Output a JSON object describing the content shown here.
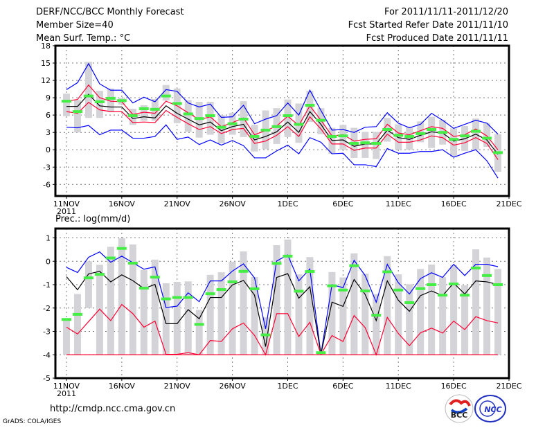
{
  "header": {
    "title": "DERF/NCC/BCC Monthly Forecast",
    "member_size": "Member Size=40",
    "variable_top": "Mean Surf. Temp.: °C",
    "period": "For 2011/11/11-2011/12/20",
    "started": "Fcst Started Refer Date 2011/11/10",
    "produced": "Fcst Produced Date 2011/11/11"
  },
  "footer": {
    "url": "http://cmdp.ncc.cma.gov.cn",
    "credit": "GrADS: COLA/IGES",
    "logo_bcc": "BCC",
    "logo_ncc": "NCC"
  },
  "colors": {
    "max_min": "#0000ff",
    "spread": "#ff0033",
    "mean": "#000000",
    "obs": "#44ee44",
    "box": "#d4d4d8"
  },
  "chart_data": [
    {
      "type": "line",
      "title": "Mean Surf. Temp.: °C",
      "xlabel": "",
      "ylabel": "",
      "x_tick_labels": [
        "11NOV",
        "16NOV",
        "21NOV",
        "26NOV",
        "1DEC",
        "6DEC",
        "11DEC",
        "16DEC",
        "21DEC"
      ],
      "x_tick_sub": "2011",
      "x_tick_days": [
        0,
        5,
        10,
        15,
        20,
        25,
        30,
        35,
        40
      ],
      "xlim": [
        -1,
        40
      ],
      "y_ticks": [
        -6,
        -3,
        0,
        3,
        6,
        9,
        12,
        15,
        18
      ],
      "ylim": [
        -8,
        18
      ],
      "grid": true,
      "series": [
        {
          "name": "ensemble max",
          "color": "#0000ff",
          "values": [
            10.4,
            11.6,
            14.9,
            11.4,
            10.3,
            10.3,
            8.1,
            9.1,
            8.3,
            10.4,
            10.1,
            8.1,
            7.4,
            7.9,
            5.6,
            5.7,
            7.7,
            4.5,
            5.3,
            5.9,
            8.1,
            6.0,
            10.3,
            6.8,
            3.4,
            3.5,
            3.0,
            3.9,
            4.0,
            6.4,
            4.6,
            3.8,
            4.4,
            6.3,
            5.1,
            3.7,
            4.4,
            5.1,
            4.6,
            2.7
          ]
        },
        {
          "name": "upper spread",
          "color": "#ff0033",
          "values": [
            8.4,
            8.7,
            11.2,
            9.0,
            8.4,
            8.3,
            6.1,
            6.5,
            6.3,
            8.4,
            7.6,
            6.4,
            5.2,
            5.7,
            4.0,
            4.7,
            5.5,
            2.6,
            3.3,
            4.1,
            5.8,
            4.2,
            7.6,
            5.1,
            2.4,
            2.6,
            1.5,
            1.8,
            1.9,
            4.4,
            2.9,
            2.6,
            3.3,
            4.0,
            3.7,
            2.3,
            2.6,
            3.6,
            2.4,
            0.0
          ]
        },
        {
          "name": "ensemble mean",
          "color": "#000000",
          "values": [
            7.5,
            7.5,
            9.6,
            7.6,
            7.4,
            7.4,
            5.4,
            5.7,
            5.5,
            7.6,
            6.3,
            5.3,
            4.3,
            4.8,
            3.3,
            4.0,
            4.4,
            1.7,
            2.3,
            3.1,
            4.8,
            3.0,
            6.6,
            4.4,
            1.6,
            1.7,
            0.6,
            1.0,
            1.0,
            3.4,
            2.1,
            1.8,
            2.5,
            3.1,
            2.9,
            1.5,
            1.9,
            2.7,
            1.7,
            -0.8
          ]
        },
        {
          "name": "lower spread",
          "color": "#ff0033",
          "values": [
            6.6,
            6.3,
            8.2,
            6.9,
            6.6,
            6.6,
            4.7,
            4.8,
            4.7,
            6.8,
            5.6,
            4.5,
            3.5,
            4.0,
            2.8,
            3.5,
            3.7,
            1.1,
            1.5,
            2.5,
            4.0,
            2.3,
            5.7,
            3.6,
            1.0,
            1.0,
            -0.1,
            0.3,
            0.3,
            2.7,
            1.3,
            1.3,
            1.7,
            2.4,
            2.1,
            0.8,
            1.2,
            2.1,
            1.1,
            -1.7
          ]
        },
        {
          "name": "ensemble min",
          "color": "#0000ff",
          "values": [
            3.9,
            3.8,
            4.2,
            2.6,
            3.4,
            3.4,
            2.0,
            2.0,
            2.3,
            4.3,
            1.8,
            2.2,
            0.9,
            1.7,
            0.8,
            1.6,
            0.7,
            -1.4,
            -1.4,
            -0.2,
            0.8,
            -0.7,
            2.1,
            1.3,
            -0.7,
            -0.6,
            -2.6,
            -2.6,
            -2.9,
            0.2,
            -0.6,
            -0.6,
            -0.3,
            -0.3,
            0.0,
            -1.3,
            -0.6,
            0.0,
            -1.9,
            -4.9
          ]
        }
      ],
      "observed": [
        8.4,
        6.6,
        9.3,
        8.3,
        8.9,
        8.5,
        5.9,
        7.1,
        7.0,
        9.3,
        8.0,
        6.2,
        5.4,
        5.9,
        3.9,
        4.5,
        5.3,
        2.3,
        3.4,
        4.0,
        5.9,
        4.4,
        7.7,
        5.1,
        2.3,
        2.4,
        1.1,
        1.2,
        1.1,
        3.5,
        2.5,
        2.3,
        2.8,
        3.5,
        3.0,
        1.8,
        2.4,
        3.2,
        2.0,
        -0.5
      ],
      "box_low": [
        5.8,
        3.0,
        5.5,
        5.5,
        6.5,
        7.8,
        4.3,
        5.0,
        5.0,
        8.5,
        4.6,
        3.1,
        2.1,
        2.6,
        1.1,
        2.6,
        2.2,
        -0.3,
        0.1,
        1.0,
        2.2,
        1.2,
        4.8,
        2.7,
        -0.7,
        0.0,
        -1.4,
        -1.4,
        -1.6,
        1.4,
        0.0,
        0.0,
        1.3,
        0.3,
        0.9,
        -1.2,
        -0.2,
        0.0,
        0.5,
        -3.8
      ],
      "box_high": [
        9.7,
        8.6,
        15.2,
        10.2,
        10.6,
        9.0,
        7.1,
        7.7,
        8.8,
        11.2,
        10.6,
        8.6,
        8.3,
        8.3,
        6.0,
        6.4,
        8.4,
        4.3,
        6.8,
        7.2,
        8.7,
        8.0,
        10.2,
        7.2,
        3.8,
        4.3,
        3.8,
        3.1,
        3.1,
        5.5,
        4.4,
        4.0,
        4.9,
        5.7,
        5.2,
        3.7,
        4.1,
        5.4,
        4.6,
        2.7
      ]
    },
    {
      "type": "line",
      "title": "Prec.: log(mm/d)",
      "xlabel": "",
      "ylabel": "",
      "x_tick_labels": [
        "11NOV",
        "16NOV",
        "21NOV",
        "26NOV",
        "1DEC",
        "6DEC",
        "11DEC",
        "16DEC",
        "21DEC"
      ],
      "x_tick_sub": "2011",
      "x_tick_days": [
        0,
        5,
        10,
        15,
        20,
        25,
        30,
        35,
        40
      ],
      "xlim": [
        -1,
        40
      ],
      "y_ticks": [
        -5,
        -4,
        -3,
        -2,
        -1,
        0,
        1
      ],
      "ylim": [
        -5,
        1.4
      ],
      "grid": true,
      "series": [
        {
          "name": "ensemble max",
          "color": "#0000ff",
          "values": [
            -0.26,
            -0.48,
            0.17,
            0.4,
            -0.04,
            0.22,
            -0.06,
            -0.34,
            -0.24,
            -1.98,
            -1.92,
            -1.35,
            -1.73,
            -0.84,
            -0.84,
            -0.42,
            -0.11,
            -0.71,
            -2.89,
            0.01,
            0.27,
            -0.84,
            -0.33,
            -3.98,
            -1.0,
            -1.13,
            0.04,
            -0.61,
            -1.75,
            -0.13,
            -0.92,
            -1.4,
            -0.74,
            -0.49,
            -0.69,
            -0.13,
            -0.61,
            -0.13,
            -0.13,
            -0.23
          ]
        },
        {
          "name": "ensemble mean",
          "color": "#000000",
          "values": [
            -0.66,
            -1.22,
            -0.54,
            -0.43,
            -0.88,
            -0.58,
            -0.83,
            -1.17,
            -0.99,
            -2.67,
            -2.67,
            -2.07,
            -2.46,
            -1.55,
            -1.55,
            -1.01,
            -0.82,
            -1.45,
            -3.65,
            -0.69,
            -0.53,
            -1.58,
            -1.09,
            -3.98,
            -1.75,
            -1.93,
            -0.78,
            -1.42,
            -2.54,
            -0.84,
            -1.67,
            -2.14,
            -1.47,
            -1.27,
            -1.47,
            -0.93,
            -1.4,
            -0.84,
            -0.88,
            -1.0
          ]
        },
        {
          "name": "upper spread",
          "color": "#ff0033",
          "values": [
            -2.82,
            -3.11,
            -2.58,
            -2.05,
            -2.54,
            -1.85,
            -2.24,
            -2.82,
            -2.56,
            -3.98,
            -3.98,
            -3.91,
            -4.0,
            -3.39,
            -3.43,
            -2.89,
            -2.64,
            -3.17,
            -4.0,
            -2.24,
            -2.24,
            -3.22,
            -2.61,
            -3.98,
            -3.18,
            -3.43,
            -2.32,
            -2.84,
            -4.0,
            -2.4,
            -3.09,
            -3.61,
            -3.06,
            -2.86,
            -3.07,
            -2.56,
            -2.92,
            -2.37,
            -2.54,
            -2.64
          ]
        },
        {
          "name": "ensemble min",
          "color": "#ff0033",
          "values": [
            -4,
            -4,
            -4,
            -4,
            -4,
            -4,
            -4,
            -4,
            -4,
            -4,
            -4,
            -4,
            -4,
            -4,
            -4,
            -4,
            -4,
            -4,
            -4,
            -4,
            -4,
            -4,
            -4,
            -4,
            -4,
            -4,
            -4,
            -4,
            -4,
            -4,
            -4,
            -4,
            -4,
            -4,
            -4,
            -4,
            -4,
            -4,
            -4,
            -4
          ]
        }
      ],
      "observed": [
        -2.49,
        -2.27,
        -0.71,
        -0.56,
        0.14,
        0.55,
        -0.08,
        -1.15,
        -0.68,
        -1.61,
        -1.55,
        -1.55,
        -2.7,
        -1.39,
        -1.21,
        -0.88,
        -0.43,
        -1.18,
        -3.15,
        -0.09,
        0.22,
        -1.28,
        -0.44,
        -3.91,
        -1.05,
        -1.23,
        -0.19,
        -1.27,
        -2.31,
        -0.45,
        -1.23,
        -1.77,
        -1.17,
        -1.0,
        -1.45,
        -0.97,
        -1.45,
        -0.29,
        -0.61,
        -1.0
      ],
      "box_low": [
        -4,
        -4,
        -2.0,
        -4,
        -4,
        -4,
        -4,
        -4,
        -4,
        -4,
        -4,
        -4,
        -4,
        -4,
        -4,
        -4,
        -4,
        -4,
        -4,
        -4,
        -4,
        -4,
        -4,
        -4,
        -4,
        -4,
        -4,
        -4,
        -4,
        -4,
        -4,
        -4,
        -4,
        -4,
        -4,
        -4,
        -4,
        -4,
        -4,
        -4
      ],
      "box_high": [
        -2.47,
        -1.4,
        0.0,
        -0.15,
        0.62,
        0.98,
        0.72,
        -0.38,
        0.07,
        -0.94,
        -0.88,
        -0.86,
        -2.08,
        -0.58,
        -0.47,
        -0.02,
        0.42,
        -0.67,
        -2.4,
        0.69,
        0.93,
        -0.56,
        0.18,
        -3.9,
        -0.46,
        -0.69,
        0.34,
        -0.53,
        -1.4,
        0.22,
        -0.56,
        -0.98,
        -0.33,
        -0.14,
        -0.68,
        -0.16,
        -1.03,
        0.51,
        0.16,
        -0.33
      ]
    }
  ]
}
